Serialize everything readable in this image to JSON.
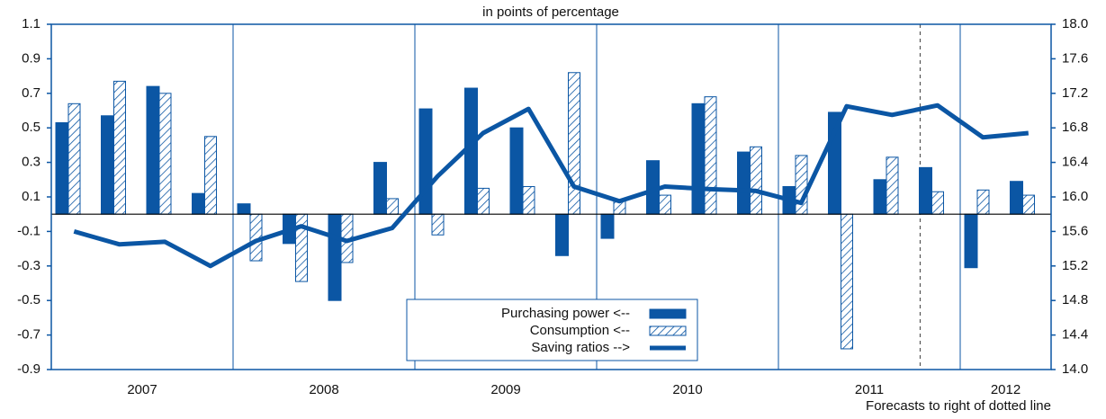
{
  "chart_data": {
    "type": "bar-line",
    "subtitle": "in points of percentage",
    "annotation": "Forecasts to right of dotted line",
    "years": [
      {
        "label": "2007",
        "quarters": 4
      },
      {
        "label": "2008",
        "quarters": 4
      },
      {
        "label": "2009",
        "quarters": 4
      },
      {
        "label": "2010",
        "quarters": 4
      },
      {
        "label": "2011",
        "quarters": 4
      },
      {
        "label": "2012",
        "quarters": 2
      }
    ],
    "forecast_from": 19,
    "ylim": [
      -0.9,
      1.1
    ],
    "yticks": [
      {
        "value": 1.1,
        "label": "1.1"
      },
      {
        "value": 0.9,
        "label": "0.9"
      },
      {
        "value": 0.7,
        "label": "0.7"
      },
      {
        "value": 0.5,
        "label": "0.5"
      },
      {
        "value": 0.3,
        "label": "0.3"
      },
      {
        "value": 0.1,
        "label": "0.1"
      },
      {
        "value": -0.1,
        "label": "-0.1"
      },
      {
        "value": -0.3,
        "label": "-0.3"
      },
      {
        "value": -0.5,
        "label": "-0.5"
      },
      {
        "value": -0.7,
        "label": "-0.7"
      },
      {
        "value": -0.9,
        "label": "-0.9"
      }
    ],
    "y2lim": [
      14.0,
      18.0
    ],
    "y2ticks": [
      {
        "value": 14.0,
        "label": "14.0"
      },
      {
        "value": 14.4,
        "label": "14.4"
      },
      {
        "value": 14.8,
        "label": "14.8"
      },
      {
        "value": 15.2,
        "label": "15.2"
      },
      {
        "value": 15.6,
        "label": "15.6"
      },
      {
        "value": 16.0,
        "label": "16.0"
      },
      {
        "value": 16.4,
        "label": "16.4"
      },
      {
        "value": 16.8,
        "label": "16.8"
      },
      {
        "value": 17.2,
        "label": "17.2"
      },
      {
        "value": 17.6,
        "label": "17.6"
      },
      {
        "value": 18.0,
        "label": "18.0"
      }
    ],
    "series": [
      {
        "name": "Purchasing power <--",
        "kind": "bar",
        "style": "solid",
        "color": "#0b56a4",
        "values": [
          0.53,
          0.57,
          0.74,
          0.12,
          0.06,
          -0.17,
          -0.5,
          0.3,
          0.61,
          0.73,
          0.5,
          -0.24,
          -0.14,
          0.31,
          0.64,
          0.36,
          0.16,
          0.59,
          0.2,
          0.27,
          -0.31,
          0.19
        ]
      },
      {
        "name": "Consumption <--",
        "kind": "bar",
        "style": "hatched",
        "color": "#0b56a4",
        "values": [
          0.64,
          0.77,
          0.7,
          0.45,
          -0.27,
          -0.39,
          -0.28,
          0.09,
          -0.12,
          0.15,
          0.16,
          0.82,
          0.08,
          0.11,
          0.68,
          0.39,
          0.34,
          -0.78,
          0.33,
          0.13,
          0.14,
          0.11
        ]
      },
      {
        "name": "Saving ratios -->",
        "kind": "line",
        "axis": "y2",
        "color": "#0b56a4",
        "values": [
          15.6,
          15.45,
          15.48,
          15.2,
          15.49,
          15.66,
          15.49,
          15.64,
          16.24,
          16.74,
          17.02,
          16.12,
          15.95,
          16.12,
          16.09,
          16.07,
          15.93,
          17.05,
          16.95,
          17.06,
          16.69,
          16.74
        ]
      }
    ]
  }
}
